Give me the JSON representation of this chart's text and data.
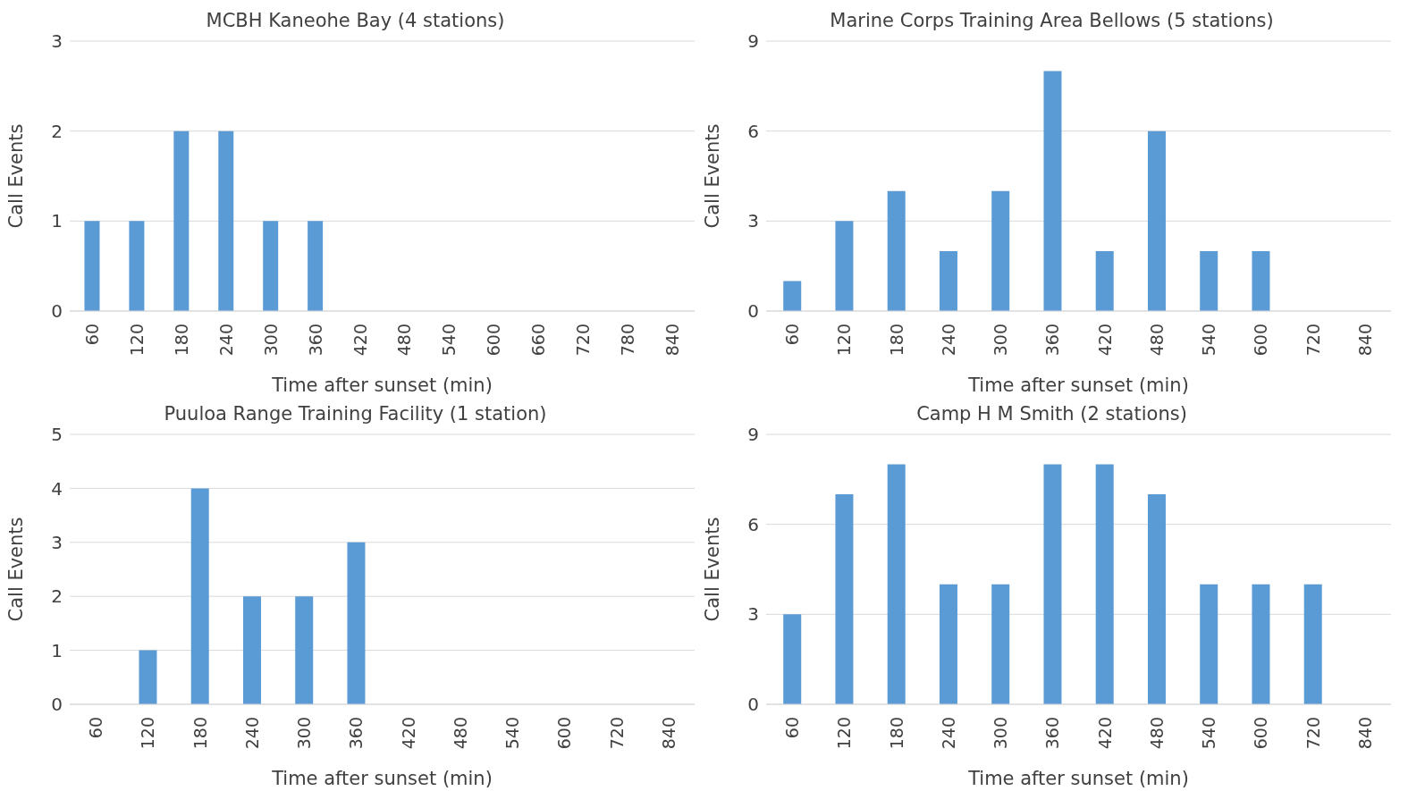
{
  "chart_data": [
    {
      "type": "bar",
      "title": "MCBH Kaneohe Bay (4 stations)",
      "xlabel": "Time after sunset (min)",
      "ylabel": "Call Events",
      "categories": [
        "60",
        "120",
        "180",
        "240",
        "300",
        "360",
        "420",
        "480",
        "540",
        "600",
        "660",
        "720",
        "780",
        "840"
      ],
      "values": [
        1,
        1,
        2,
        2,
        1,
        1,
        0,
        0,
        0,
        0,
        0,
        0,
        0,
        0
      ],
      "color": "#5b9bd5",
      "ylim": [
        0,
        3
      ],
      "yticks": [
        0,
        1,
        2,
        3
      ],
      "grid": "y"
    },
    {
      "type": "bar",
      "title": "Marine Corps Training Area Bellows (5 stations)",
      "xlabel": "Time after sunset (min)",
      "ylabel": "Call Events",
      "categories": [
        "60",
        "120",
        "180",
        "240",
        "300",
        "360",
        "420",
        "480",
        "540",
        "600",
        "720",
        "840"
      ],
      "values": [
        1,
        3,
        4,
        2,
        4,
        8,
        2,
        6,
        2,
        2,
        0,
        0
      ],
      "color": "#5b9bd5",
      "ylim": [
        0,
        9
      ],
      "yticks": [
        0,
        3,
        6,
        9
      ],
      "grid": "y"
    },
    {
      "type": "bar",
      "title": "Puuloa Range Training Facility (1 station)",
      "xlabel": "Time after sunset (min)",
      "ylabel": "Call Events",
      "categories": [
        "60",
        "120",
        "180",
        "240",
        "300",
        "360",
        "420",
        "480",
        "540",
        "600",
        "720",
        "840"
      ],
      "values": [
        0,
        1,
        4,
        2,
        2,
        3,
        0,
        0,
        0,
        0,
        0,
        0
      ],
      "color": "#5b9bd5",
      "ylim": [
        0,
        5
      ],
      "yticks": [
        0,
        1,
        2,
        3,
        4,
        5
      ],
      "grid": "y"
    },
    {
      "type": "bar",
      "title": "Camp H M Smith (2 stations)",
      "xlabel": "Time after sunset (min)",
      "ylabel": "Call Events",
      "categories": [
        "60",
        "120",
        "180",
        "240",
        "300",
        "360",
        "420",
        "480",
        "540",
        "600",
        "720",
        "840"
      ],
      "values": [
        3,
        7,
        8,
        4,
        4,
        8,
        8,
        7,
        4,
        4,
        4,
        0
      ],
      "color": "#5b9bd5",
      "ylim": [
        0,
        9
      ],
      "yticks": [
        0,
        3,
        6,
        9
      ],
      "grid": "y"
    }
  ]
}
